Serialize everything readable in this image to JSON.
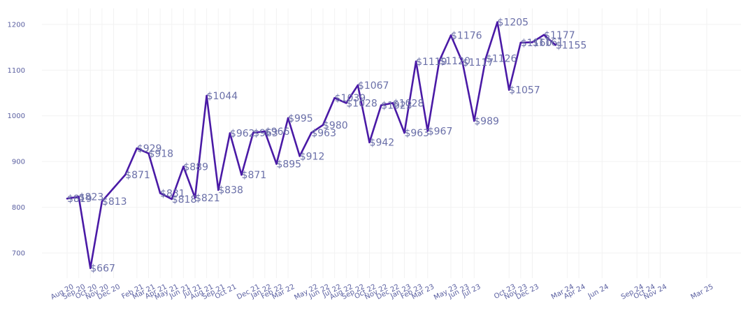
{
  "chart_data": {
    "type": "line",
    "title": "",
    "xlabel": "",
    "ylabel": "",
    "ylim": [
      645,
      1235
    ],
    "yticks": [
      700,
      800,
      900,
      1000,
      1100,
      1200
    ],
    "grid": true,
    "line_color": "#4a1aa6",
    "label_color": "#6a6fa8",
    "tick_color": "#5a5fa0",
    "x": [
      "Aug 20",
      "Sep 20",
      "Oct 20",
      "Nov 20",
      "Dec 20",
      "Jan 21",
      "Feb 21",
      "Mar 21",
      "Apr 21",
      "May 21",
      "Jun 21",
      "Jul 21",
      "Aug 21",
      "Sep 21",
      "Oct 21",
      "Nov 21",
      "Dec 21",
      "Jan 22",
      "Feb 22",
      "Mar 22",
      "Apr 22",
      "May 22",
      "Jun 22",
      "Jul 22",
      "Aug 22",
      "Sep 22",
      "Oct 22",
      "Nov 22",
      "Dec 22",
      "Jan 23",
      "Feb 23",
      "Mar 23",
      "Apr 23",
      "May 23",
      "Jun 23",
      "Jul 23",
      "Aug 23",
      "Sep 23",
      "Oct 23",
      "Nov 23",
      "Dec 23",
      "Jan 24",
      "Feb 24",
      "Mar 24",
      "Apr 24",
      "May 24",
      "Jun 24",
      "Jul 24",
      "Aug 24",
      "Sep 24",
      "Oct 24",
      "Nov 24",
      "Dec 24",
      "Jan 25",
      "Feb 25",
      "Mar 25"
    ],
    "values": [
      819,
      823,
      667,
      813,
      842,
      871,
      929,
      918,
      831,
      818,
      889,
      821,
      1044,
      838,
      962,
      871,
      963,
      966,
      895,
      995,
      912,
      963,
      980,
      1039,
      1028,
      1067,
      942,
      1023,
      1028,
      963,
      1119,
      967,
      1120,
      1176,
      1117,
      989,
      1126,
      1205,
      1057,
      1160,
      1161,
      1177,
      1155
    ],
    "labels": [
      "$819",
      "$823",
      "$667",
      "$813",
      "",
      "$871",
      "$929",
      "$918",
      "$831",
      "$818",
      "$889",
      "$821",
      "$1044",
      "$838",
      "$962",
      "$871",
      "$963",
      "$966",
      "$895",
      "$995",
      "$912",
      "$963",
      "$980",
      "$1039",
      "$1028",
      "$1067",
      "$942",
      "$1023",
      "$1028",
      "$963",
      "$1119",
      "$967",
      "$1120",
      "$1176",
      "$1117",
      "$989",
      "$1126",
      "$1205",
      "$1057",
      "$1160",
      "$1161",
      "$1177",
      "$1155"
    ],
    "point_months": [
      "Aug 20",
      "Sep 20",
      "Oct 20",
      "Nov 20",
      "Dec 20",
      "Jan 21",
      "Feb 21",
      "Mar 21",
      "Apr 21",
      "May 21",
      "Jun 21",
      "Jul 21",
      "Aug 21",
      "Sep 21",
      "Oct 21",
      "Nov 21",
      "Dec 21",
      "Jan 22",
      "Feb 22",
      "Mar 22",
      "Apr 22",
      "May 22",
      "Jun 22",
      "Jul 22",
      "Aug 22",
      "Sep 22",
      "Oct 22",
      "Nov 22",
      "Dec 22",
      "Jan 23",
      "Feb 23",
      "Mar 23",
      "Apr 23",
      "May 23",
      "Jun 23",
      "Jul 23",
      "Aug 23",
      "Sep 23",
      "Oct 23",
      "Nov 23",
      "Dec 23",
      "Jan 24",
      "Feb 24"
    ],
    "xtick_labels": [
      "Aug 20",
      "Sep 20",
      "Oct 20",
      "Nov 20",
      "Dec 20",
      "Feb 21",
      "Mar 21",
      "Apr 21",
      "May 21",
      "Jun 21",
      "Jul 21",
      "Aug 21",
      "Sep 21",
      "Oct 21",
      "Dec 21",
      "Jan 22",
      "Feb 22",
      "Mar 22",
      "May 22",
      "Jun 22",
      "Jul 22",
      "Aug 22",
      "Sep 22",
      "Oct 22",
      "Nov 22",
      "Dec 22",
      "Jan 23",
      "Feb 23",
      "Mar 23",
      "May 23",
      "Jun 23",
      "Jul 23",
      "Oct 23",
      "Nov 23",
      "Dec 23",
      "Mar 24",
      "Apr 24",
      "Jun 24",
      "Sep 24",
      "Oct 24",
      "Nov 24",
      "Mar 25"
    ]
  }
}
